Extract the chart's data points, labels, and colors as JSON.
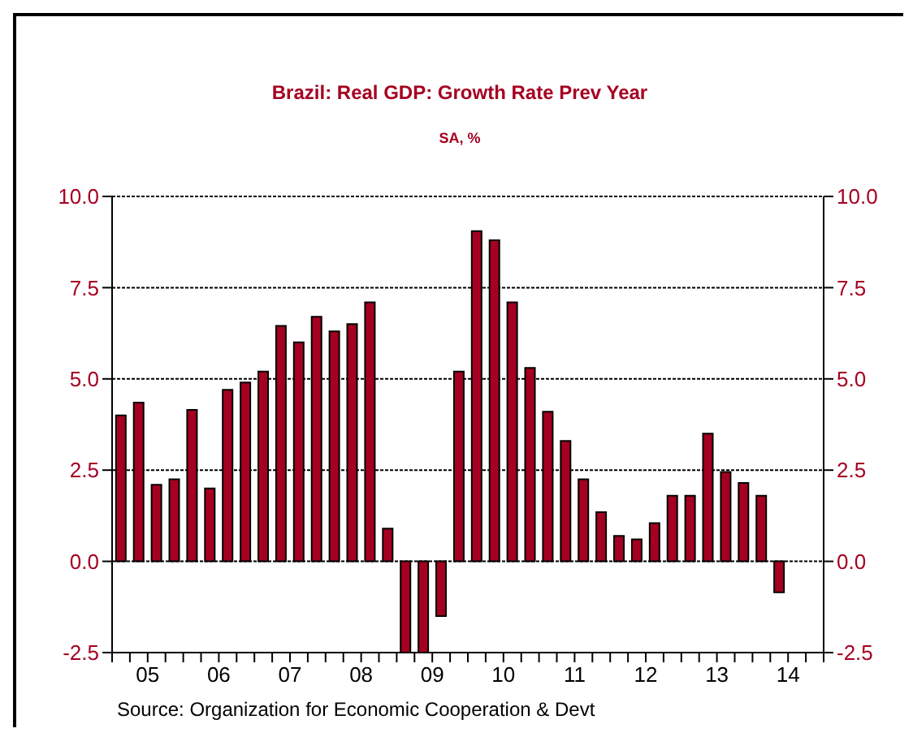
{
  "chart_data": {
    "type": "bar",
    "title": "Brazil: Real GDP: Growth Rate Prev Year",
    "subtitle": "SA, %",
    "categories": [
      null,
      "05",
      null,
      null,
      null,
      "06",
      null,
      null,
      null,
      "07",
      null,
      null,
      null,
      "08",
      null,
      null,
      null,
      "09",
      null,
      null,
      null,
      "10",
      null,
      null,
      null,
      "11",
      null,
      null,
      null,
      "12",
      null,
      null,
      null,
      "13",
      null,
      null,
      null,
      "14",
      null,
      null
    ],
    "values": [
      4.0,
      4.35,
      2.1,
      2.25,
      4.15,
      2.0,
      4.7,
      4.9,
      5.2,
      6.45,
      6.0,
      6.7,
      6.3,
      6.5,
      7.1,
      0.9,
      -2.5,
      -2.5,
      -1.5,
      5.2,
      9.05,
      8.8,
      7.1,
      5.3,
      4.1,
      3.3,
      2.25,
      1.35,
      0.7,
      0.6,
      1.05,
      1.8,
      1.8,
      3.5,
      2.45,
      2.15,
      1.8,
      -0.85,
      null,
      null
    ],
    "color": "#a50021",
    "ylim": [
      -2.5,
      10
    ],
    "yticks": [
      {
        "value": -2.5,
        "label": "-2.5"
      },
      {
        "value": 0,
        "label": "0.0"
      },
      {
        "value": 2.5,
        "label": "2.5"
      },
      {
        "value": 5,
        "label": "5.0"
      },
      {
        "value": 7.5,
        "label": "7.5"
      },
      {
        "value": 10,
        "label": "10.0"
      }
    ],
    "y2lim": [
      -2.5,
      10
    ],
    "y2ticks": [
      {
        "value": -2.5,
        "label": "-2.5"
      },
      {
        "value": 0,
        "label": "0.0"
      },
      {
        "value": 2.5,
        "label": "2.5"
      },
      {
        "value": 5,
        "label": "5.0"
      },
      {
        "value": 7.5,
        "label": "7.5"
      },
      {
        "value": 10,
        "label": "10.0"
      }
    ],
    "grid": "y",
    "annotations": [
      "Source:  Organization for Economic Cooperation & Devt"
    ]
  }
}
